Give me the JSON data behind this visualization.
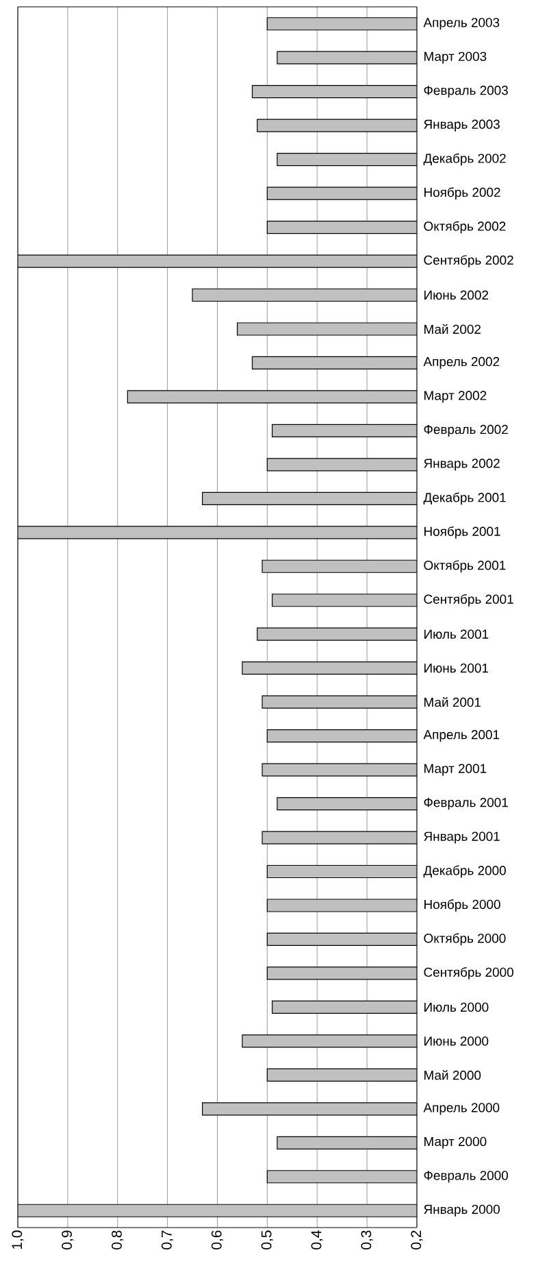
{
  "chart_data": {
    "type": "bar",
    "orientation": "horizontal",
    "categories": [
      "Апрель 2003",
      "Март 2003",
      "Февраль 2003",
      "Январь 2003",
      "Декабрь 2002",
      "Ноябрь 2002",
      "Октябрь 2002",
      "Сентябрь 2002",
      "Июнь 2002",
      "Май 2002",
      "Апрель 2002",
      "Март 2002",
      "Февраль 2002",
      "Январь 2002",
      "Декабрь 2001",
      "Ноябрь 2001",
      "Октябрь 2001",
      "Сентябрь 2001",
      "Июль 2001",
      "Июнь 2001",
      "Май 2001",
      "Апрель 2001",
      "Март 2001",
      "Февраль 2001",
      "Январь 2001",
      "Декабрь 2000",
      "Ноябрь 2000",
      "Октябрь 2000",
      "Сентябрь 2000",
      "Июль 2000",
      "Июнь 2000",
      "Май 2000",
      "Апрель 2000",
      "Март 2000",
      "Февраль 2000",
      "Январь 2000"
    ],
    "values": [
      0.5,
      0.48,
      0.53,
      0.52,
      0.48,
      0.5,
      0.5,
      1.0,
      0.65,
      0.56,
      0.53,
      0.78,
      0.49,
      0.5,
      0.63,
      1.0,
      0.51,
      0.49,
      0.52,
      0.55,
      0.51,
      0.5,
      0.51,
      0.48,
      0.51,
      0.5,
      0.5,
      0.5,
      0.5,
      0.49,
      0.55,
      0.5,
      0.63,
      0.48,
      0.5,
      1.0
    ],
    "color": "#c0c0c0",
    "xlim": [
      1.0,
      0.2
    ],
    "xticks": [
      {
        "value": 1.0,
        "label": "1,0"
      },
      {
        "value": 0.9,
        "label": "0,9"
      },
      {
        "value": 0.8,
        "label": "0,8"
      },
      {
        "value": 0.7,
        "label": "0,7"
      },
      {
        "value": 0.6,
        "label": "0,6"
      },
      {
        "value": 0.5,
        "label": "0,5"
      },
      {
        "value": 0.4,
        "label": "0,4"
      },
      {
        "value": 0.3,
        "label": "0,3"
      },
      {
        "value": 0.2,
        "label": "0,2"
      }
    ],
    "grid": "x"
  }
}
